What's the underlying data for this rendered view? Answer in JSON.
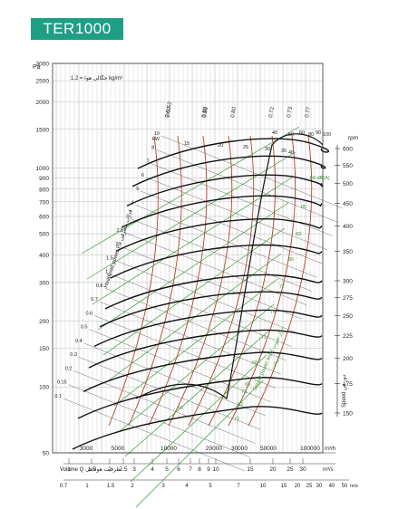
{
  "title": "TER1000",
  "chart_data": {
    "type": "line",
    "y_unit": "Pa",
    "y_scale": "log",
    "y_ticks": [
      50,
      100,
      150,
      200,
      300,
      400,
      500,
      600,
      700,
      800,
      900,
      1000,
      1500,
      2000,
      2500,
      3000
    ],
    "density_note": "جگالی هوا = 1.2 kg/m³",
    "rpm_unit": "rpm",
    "rpm_ticks": [
      150,
      175,
      200,
      225,
      250,
      275,
      300,
      350,
      400,
      450,
      500,
      550,
      600
    ],
    "rpm_axis_label": "Speed دور فن",
    "power_axis_label": "Headload power Pa قدرت مصرفی",
    "power_ticks": [
      "0.1",
      "0.15",
      "0.2",
      "0.3",
      "0.4",
      "0.5",
      "0.6",
      "0.7",
      "0.8",
      "1",
      "1.5",
      "2",
      "2.5",
      "3",
      "4",
      "5",
      "6",
      "7",
      "8",
      "10"
    ],
    "power_unit": "kW",
    "efficiency_labels": [
      "0.72",
      "0.73",
      "0.77",
      "0.80",
      "0.85",
      "0.50",
      "0.60",
      "2×LS2"
    ],
    "sound_levels": [
      "85",
      "83",
      "80",
      "77",
      "74",
      "71",
      "68",
      "65",
      "62",
      "59 dB(A)",
      "56",
      "73",
      "72"
    ],
    "sound_axis_label": "Sound power level تراز صوت",
    "velocity_note": "سرعت",
    "flow_m3h_unit": "m³/h",
    "flow_m3h_ticks": [
      "3000",
      "5000",
      "10000",
      "20000",
      "30000",
      "50000",
      "100000"
    ],
    "flow_m3s_unit": "m³/s",
    "flow_m3s_ticks": [
      "1",
      "1.5",
      "2",
      "2.5",
      "3",
      "4",
      "5",
      "6",
      "7",
      "8",
      "9",
      "10",
      "15",
      "20",
      "25",
      "30"
    ],
    "flow_axis_label": "Volume Q ظرفیت هوادهی",
    "velocity_unit": "m/s",
    "velocity_ticks": [
      "0.7",
      "1",
      "1.5",
      "2",
      "3",
      "4",
      "5",
      "7",
      "10",
      "15",
      "20",
      "25",
      "30",
      "40",
      "50"
    ],
    "outlet_speed_marks": [
      "15",
      "20",
      "25",
      "30",
      "35",
      "40"
    ],
    "top_speed_marks": [
      "40",
      "50",
      "60",
      "80",
      "90",
      "100"
    ],
    "colors": {
      "badge": "#1f9e86",
      "efficiency": "#b0442a",
      "sound": "#3a9a3a",
      "curves": "#111111",
      "grid": "#bbbbbb"
    }
  }
}
